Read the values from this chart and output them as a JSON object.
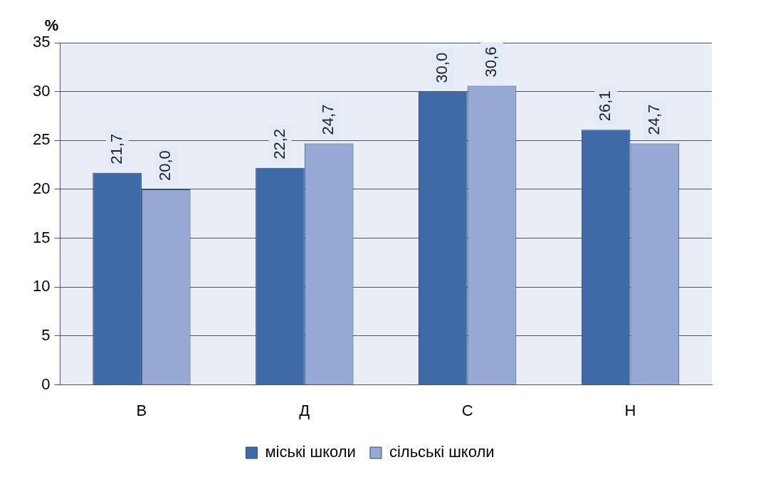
{
  "chart_data": {
    "type": "bar",
    "ylabel": "%",
    "categories": [
      "В",
      "Д",
      "С",
      "Н"
    ],
    "series": [
      {
        "name": "міські школи",
        "color": "#3e6aa8",
        "values": [
          21.7,
          22.2,
          30.0,
          26.1
        ],
        "value_labels": [
          "21,7",
          "22,2",
          "30,0",
          "26,1"
        ]
      },
      {
        "name": "сільські школи",
        "color": "#95a9d4",
        "values": [
          20.0,
          24.7,
          30.6,
          24.7
        ],
        "value_labels": [
          "20,0",
          "24,7",
          "30,6",
          "24,7"
        ]
      }
    ],
    "ylim": [
      0,
      35
    ],
    "yticks": [
      0,
      5,
      10,
      15,
      20,
      25,
      30,
      35
    ],
    "grid": "y",
    "legend": "bottom"
  }
}
